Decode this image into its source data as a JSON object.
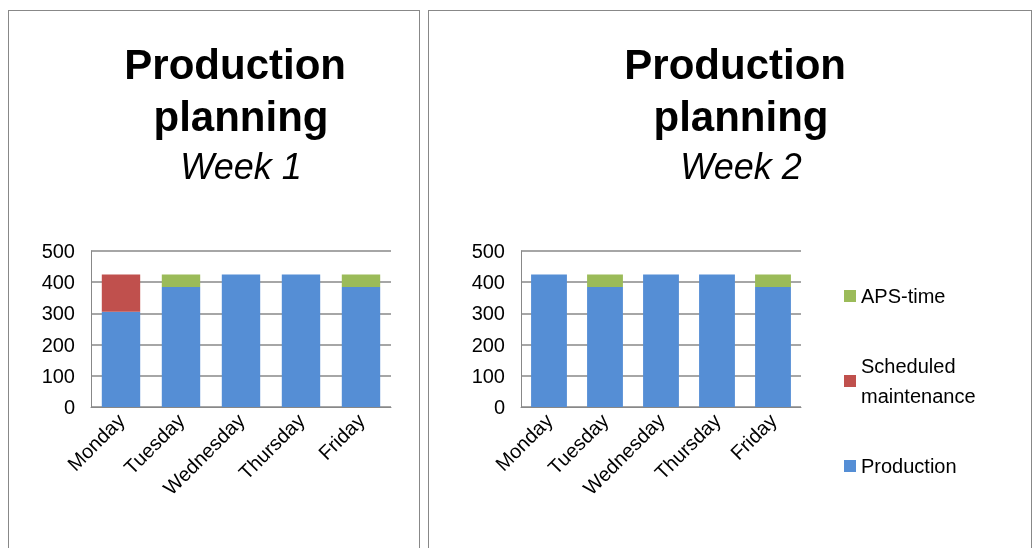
{
  "chart_data": [
    {
      "type": "bar",
      "title": "Production planning",
      "subtitle": "Week 1",
      "categories": [
        "Monday",
        "Tuesday",
        "Wednesday",
        "Thursday",
        "Friday"
      ],
      "stacked": true,
      "ylim": [
        0,
        500
      ],
      "yticks": [
        0,
        100,
        200,
        300,
        400,
        500
      ],
      "grid": "y",
      "legend": false,
      "series": [
        {
          "color": "#558ed5",
          "values": [
            305,
            385,
            425,
            425,
            385
          ]
        },
        {
          "color": "#c0504d",
          "values": [
            120,
            0,
            0,
            0,
            0
          ]
        },
        {
          "color": "#9bbb59",
          "values": [
            0,
            40,
            0,
            0,
            40
          ]
        }
      ]
    },
    {
      "type": "bar",
      "title": "Production planning",
      "subtitle": "Week 2",
      "categories": [
        "Monday",
        "Tuesday",
        "Wednesday",
        "Thursday",
        "Friday"
      ],
      "stacked": true,
      "ylim": [
        0,
        500
      ],
      "yticks": [
        0,
        100,
        200,
        300,
        400,
        500
      ],
      "grid": "y",
      "legend": "right",
      "series": [
        {
          "name": "Production",
          "color": "#558ed5",
          "values": [
            425,
            385,
            425,
            425,
            385
          ]
        },
        {
          "name": "Scheduled maintenance",
          "color": "#c0504d",
          "values": [
            0,
            0,
            0,
            0,
            0
          ]
        },
        {
          "name": "APS-time",
          "color": "#9bbb59",
          "values": [
            0,
            40,
            0,
            0,
            40
          ]
        }
      ]
    }
  ]
}
